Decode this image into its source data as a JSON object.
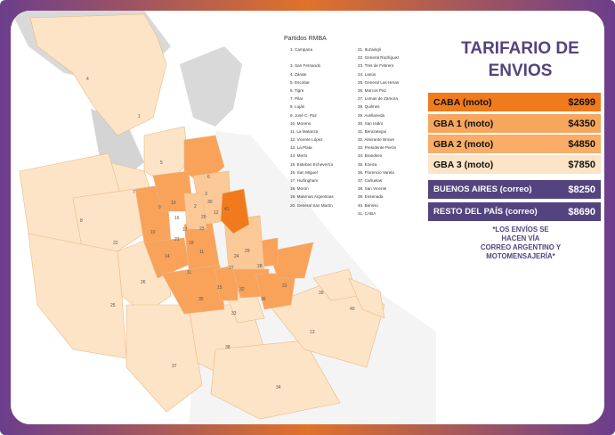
{
  "colors": {
    "frame_start": "#f07c1c",
    "frame_end": "#5a3f88",
    "caba": "#f07a1c",
    "gba1": "#f7a65d",
    "gba2": "#f9b36d",
    "gba3": "#fde4c6",
    "correo": "#53447f",
    "title": "#53447f"
  },
  "map": {
    "legend_title": "Partidos RMBA",
    "legend_col1": [
      "1. Campana",
      "",
      "3. San Fernando",
      "4. Zárate",
      "5. Escobar",
      "6. Tigre",
      "7. Pilar",
      "8. Luján",
      "9. José C. Paz",
      "10. Moreno",
      "11. La Matanza",
      "12. Vicente López",
      "13. La Plata",
      "14. Merlo",
      "15. Esteban Echeverría",
      "16. San Miguel",
      "17. Hurlingham",
      "18. Morón",
      "19. Malvinas Argentinas",
      "20. General San Martín"
    ],
    "legend_col2": [
      "21. Ituzaingó",
      "22. General Rodríguez",
      "23. Tres de Febrero",
      "24. Lanús",
      "25. General Las Heras",
      "26. Marcos Paz",
      "27. Lomas de Zamora",
      "28. Quilmes",
      "29. Avellaneda",
      "30. San Isidro",
      "31. Berazategui",
      "32. Almirante Brown",
      "33. Presidente Perón",
      "34. Brandsen",
      "35. Ezeiza",
      "36. Florencio Varela",
      "37. Cañuelas",
      "38. San Vicente",
      "39. Ensenada",
      "40. Berisso",
      "41. CABA"
    ],
    "region_numbers": [
      "1",
      "4",
      "5",
      "6",
      "7",
      "8",
      "22",
      "26",
      "25",
      "37",
      "38",
      "34",
      "13",
      "33",
      "35",
      "15",
      "32",
      "36",
      "31",
      "39",
      "40",
      "3",
      "30",
      "12",
      "20",
      "23",
      "2",
      "9",
      "19",
      "16",
      "10",
      "21",
      "17",
      "18",
      "11",
      "14",
      "41",
      "24",
      "29",
      "27",
      "28"
    ]
  },
  "tariff": {
    "title_line1": "TARIFARIO DE",
    "title_line2": "ENVIOS",
    "rows": [
      {
        "label": "CABA (moto)",
        "price": "$2699"
      },
      {
        "label": "GBA 1 (moto)",
        "price": "$4350"
      },
      {
        "label": "GBA 2 (moto)",
        "price": "$4850"
      },
      {
        "label": "GBA 3 (moto)",
        "price": "$7850"
      },
      {
        "label": "BUENOS AIRES (correo)",
        "price": "$8250"
      },
      {
        "label": "RESTO DEL PAÍS (correo)",
        "price": "$8690"
      }
    ],
    "note_lines": [
      "*LOS ENVÍOS SE",
      "HACEN VÍA",
      "CORREO ARGENTINO Y",
      "MOTOMENSAJERÍA*"
    ]
  }
}
